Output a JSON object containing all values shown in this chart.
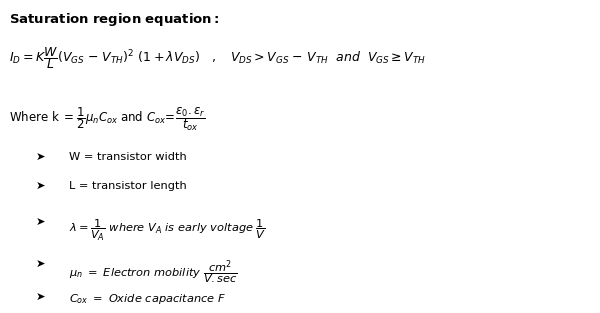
{
  "background_color": "#ffffff",
  "text_color": "#000000",
  "fig_width": 6.0,
  "fig_height": 3.13,
  "dpi": 100,
  "title": "Saturation region equation:",
  "fs_title": 9.5,
  "fs_eq": 9.0,
  "fs_where": 8.5,
  "fs_bullet": 8.2
}
